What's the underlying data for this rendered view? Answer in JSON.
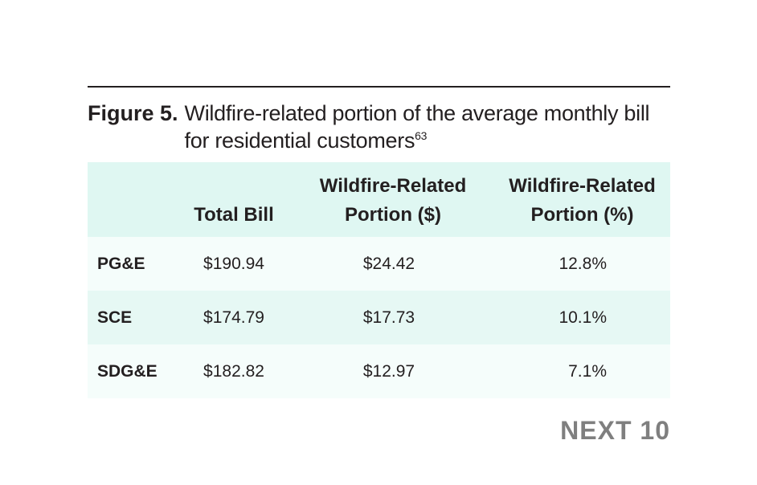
{
  "caption": {
    "label": "Figure 5.",
    "text": "Wildfire-related portion of the average monthly bill for residential customers",
    "footnote": "63"
  },
  "table": {
    "headers": [
      "",
      "Total Bill",
      "Wildfire-Related Portion ($)",
      "Wildfire-Related Portion (%)"
    ],
    "rows": [
      [
        "PG&E",
        "$190.94",
        "$24.42",
        "12.8%"
      ],
      [
        "SCE",
        "$174.79",
        "$17.73",
        "10.1%"
      ],
      [
        "SDG&E",
        "$182.82",
        "$12.97",
        "7.1%"
      ]
    ]
  },
  "brand": "NEXT 10",
  "colors": {
    "header_bg": "#dff7f2",
    "row_light": "#f5fdfb",
    "row_tint": "#e6f8f4",
    "brand_gray": "#7f7f7f",
    "text": "#231f20"
  }
}
